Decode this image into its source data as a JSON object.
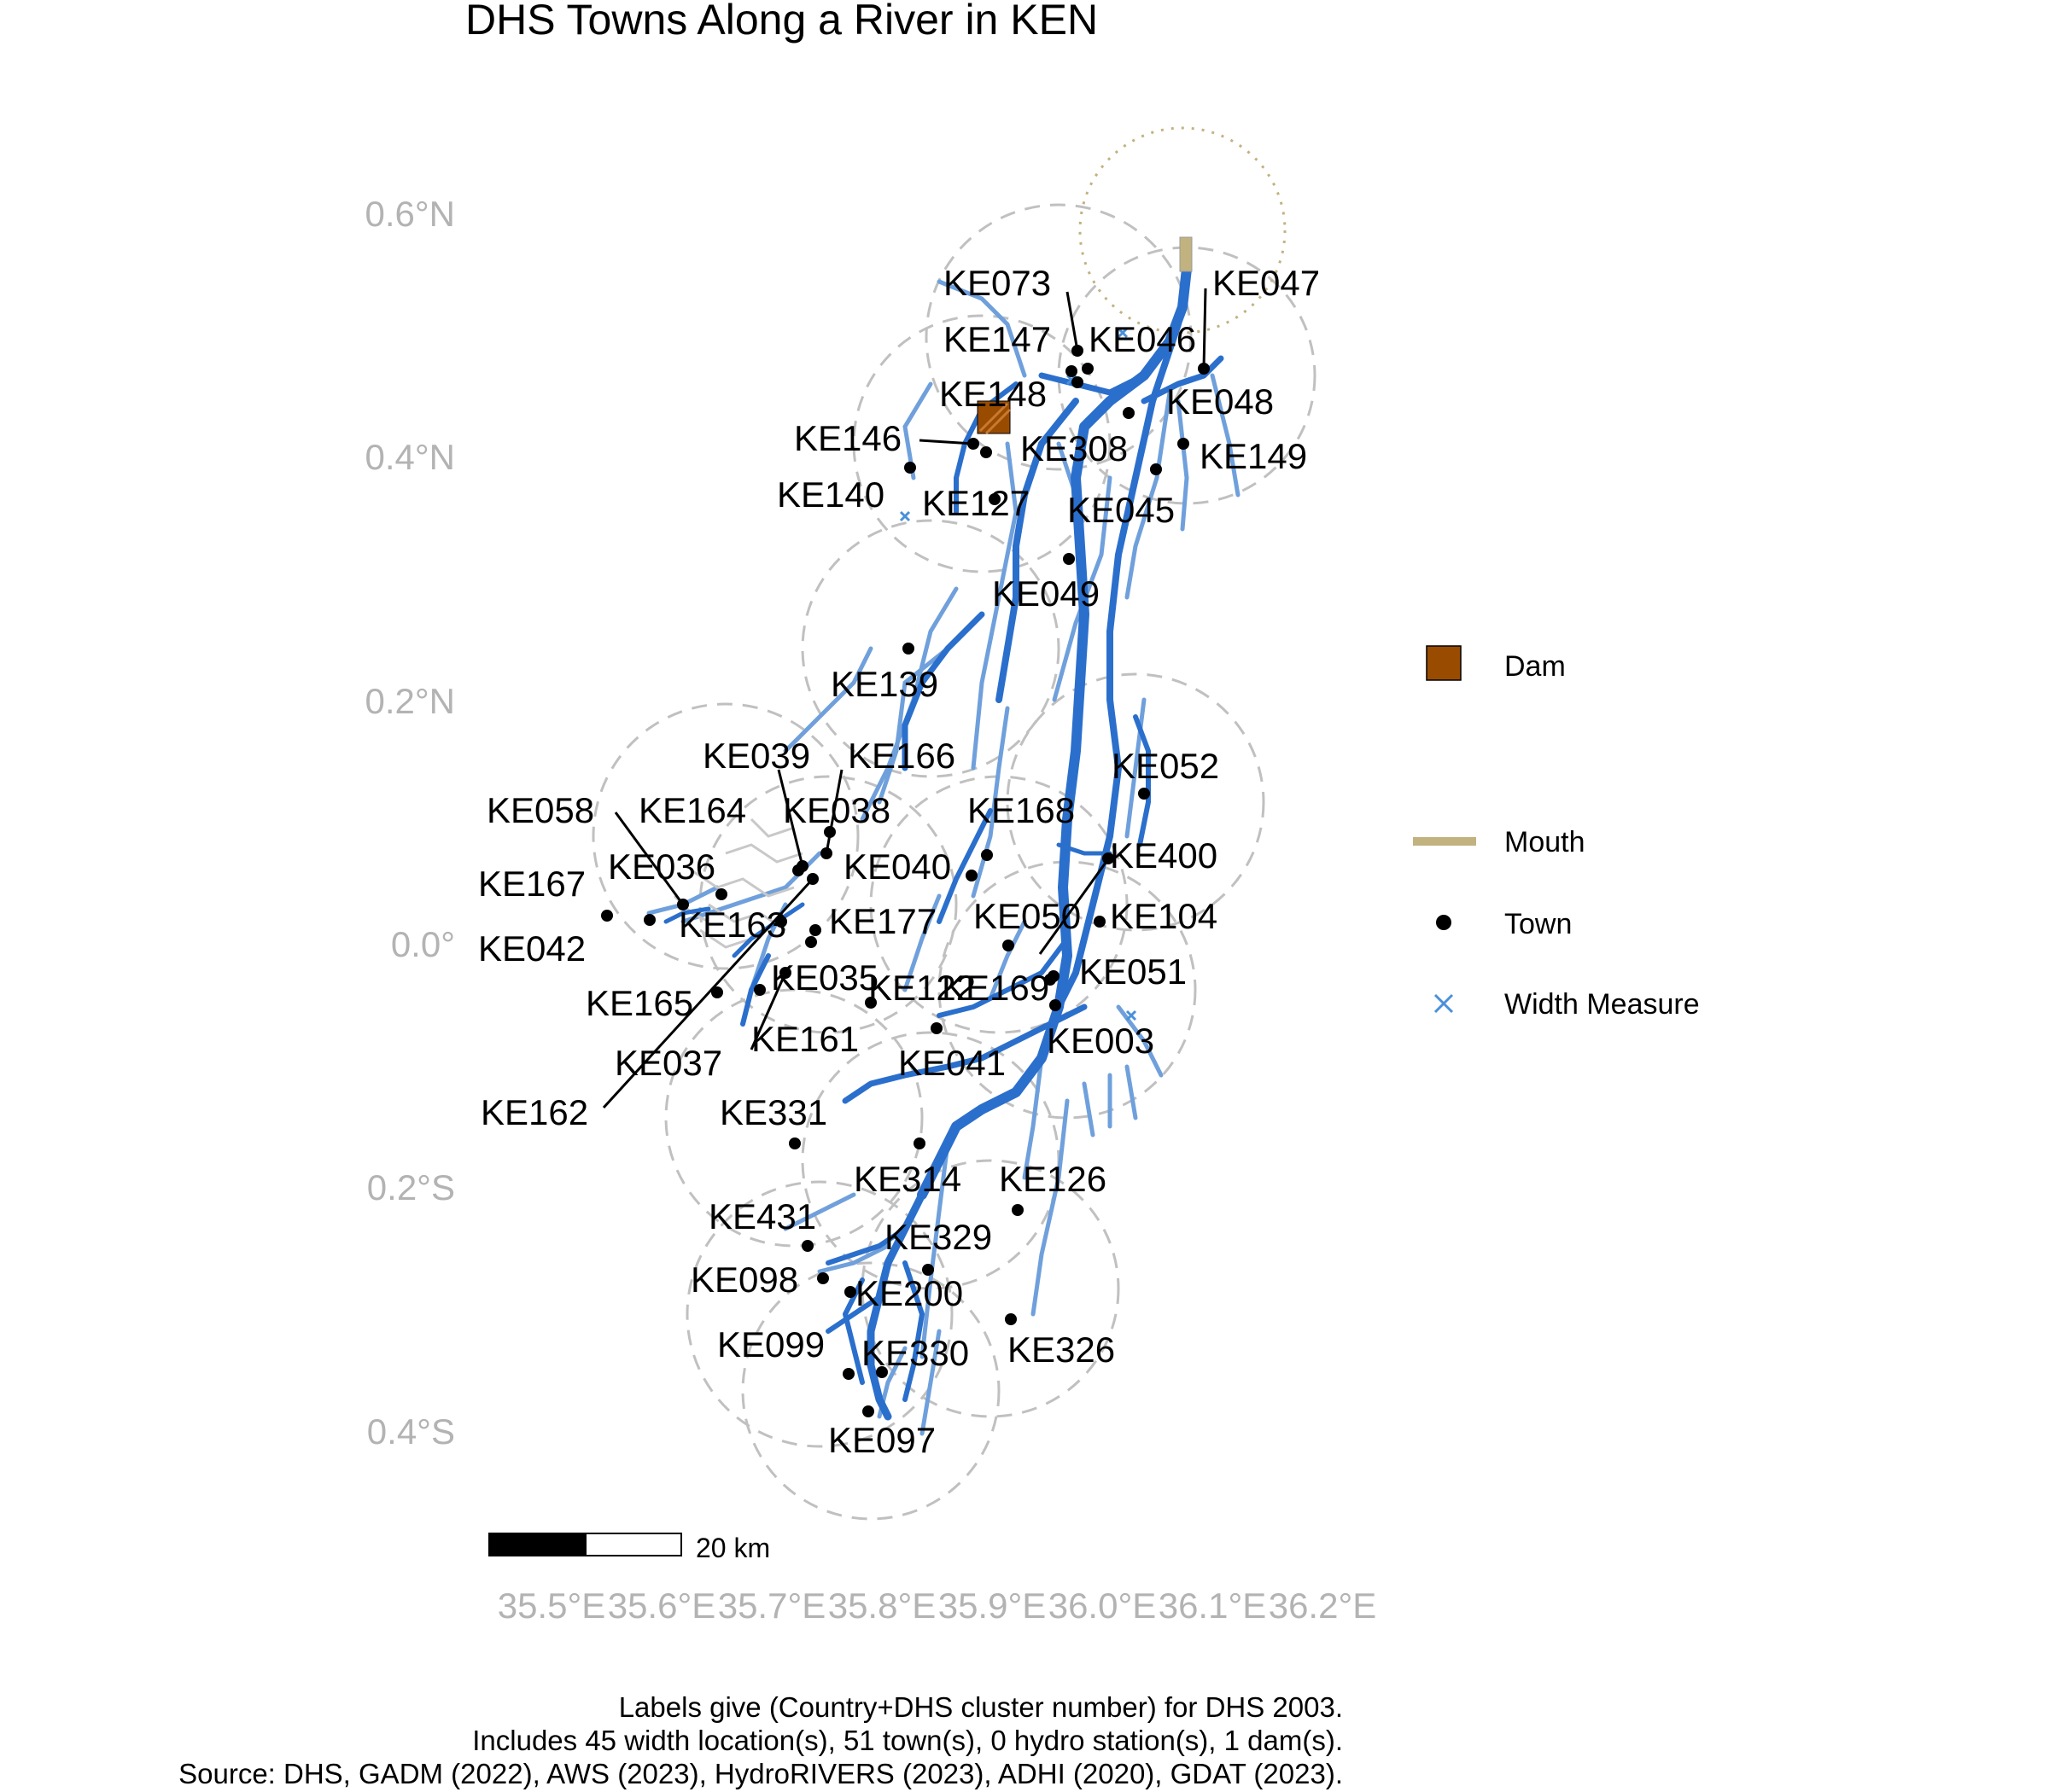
{
  "title": "DHS Towns Along a River in KEN",
  "axes": {
    "y_labels": [
      "0.6°N",
      "0.4°N",
      "0.2°N",
      "0.0°",
      "0.2°S",
      "0.4°S"
    ],
    "x_labels": [
      "35.5°E",
      "35.6°E",
      "35.7°E",
      "35.8°E",
      "35.9°E",
      "36.0°E",
      "36.1°E",
      "36.2°E"
    ]
  },
  "scale_bar": {
    "label": "20 km"
  },
  "legend": {
    "items": [
      {
        "label": "Dam",
        "color": "#994c00"
      },
      {
        "label": "Mouth",
        "color": "#c2b280"
      },
      {
        "label": "Town",
        "color": "#000000"
      },
      {
        "label": "Width Measure",
        "color": "#4a90d9"
      }
    ]
  },
  "caption": {
    "line1": "Labels give (Country+DHS cluster number) for DHS 2003.",
    "line2": "Includes 45 width location(s), 51 town(s), 0 hydro station(s), 1 dam(s).",
    "line3": "Source: DHS, GADM (2022), AWS (2023), HydroRIVERS (2023), ADHI (2020), GDAT (2023)."
  },
  "colors": {
    "river": "#2b6fcc",
    "tributary": "#6fa0dc",
    "buffer": "#c0c0c0",
    "axis_text": "#b3b3b3"
  },
  "towns": [
    {
      "label": "KE047"
    },
    {
      "label": "KE073"
    },
    {
      "label": "KE147"
    },
    {
      "label": "KE046"
    },
    {
      "label": "KE148"
    },
    {
      "label": "KE048"
    },
    {
      "label": "KE146"
    },
    {
      "label": "KE308"
    },
    {
      "label": "KE149"
    },
    {
      "label": "KE140"
    },
    {
      "label": "KE127"
    },
    {
      "label": "KE045"
    },
    {
      "label": "KE049"
    },
    {
      "label": "KE139"
    },
    {
      "label": "KE039"
    },
    {
      "label": "KE166"
    },
    {
      "label": "KE052"
    },
    {
      "label": "KE058"
    },
    {
      "label": "KE164"
    },
    {
      "label": "KE038"
    },
    {
      "label": "KE168"
    },
    {
      "label": "KE036"
    },
    {
      "label": "KE040"
    },
    {
      "label": "KE400"
    },
    {
      "label": "KE167"
    },
    {
      "label": "KE163"
    },
    {
      "label": "KE177"
    },
    {
      "label": "KE050"
    },
    {
      "label": "KE104"
    },
    {
      "label": "KE042"
    },
    {
      "label": "KE035"
    },
    {
      "label": "KE122"
    },
    {
      "label": "KE169"
    },
    {
      "label": "KE051"
    },
    {
      "label": "KE165"
    },
    {
      "label": "KE161"
    },
    {
      "label": "KE003"
    },
    {
      "label": "KE037"
    },
    {
      "label": "KE041"
    },
    {
      "label": "KE162"
    },
    {
      "label": "KE331"
    },
    {
      "label": "KE314"
    },
    {
      "label": "KE126"
    },
    {
      "label": "KE431"
    },
    {
      "label": "KE329"
    },
    {
      "label": "KE098"
    },
    {
      "label": "KE200"
    },
    {
      "label": "KE099"
    },
    {
      "label": "KE330"
    },
    {
      "label": "KE326"
    },
    {
      "label": "KE097"
    }
  ]
}
